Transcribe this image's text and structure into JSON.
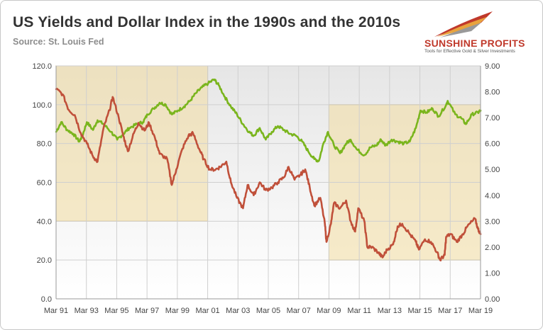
{
  "header": {
    "title": "US Yields and Dollar Index in the 1990s and the 2010s",
    "subtitle": "Source: St. Louis Fed"
  },
  "logo": {
    "name": "SUNSHINE PROFITS",
    "tagline": "Tools for Effective Gold & Silver Investments",
    "colors": [
      "#c0392b",
      "#e8a33d",
      "#999999"
    ]
  },
  "chart_data": {
    "type": "line",
    "title": "US Yields and Dollar Index in the 1990s and the 2010s",
    "subtitle": "Source: St. Louis Fed",
    "xlabel": "",
    "ylabel": "",
    "grid": true,
    "x_ticks": [
      "Mar 91",
      "Mar 93",
      "Mar 95",
      "Mar 97",
      "Mar 99",
      "Mar 01",
      "Mar 03",
      "Mar 05",
      "Mar 07",
      "Mar 09",
      "Mar 11",
      "Mar 13",
      "Mar 15",
      "Mar 17",
      "Mar 19"
    ],
    "x_range": [
      "1991-03",
      "2019-03"
    ],
    "y_left": {
      "ticks": [
        "0.0",
        "20.0",
        "40.0",
        "60.0",
        "80.0",
        "100.0",
        "120.0"
      ],
      "range": [
        0,
        120
      ]
    },
    "y_right": {
      "ticks": [
        "0.00",
        "1.00",
        "2.00",
        "3.00",
        "4.00",
        "5.00",
        "6.00",
        "7.00",
        "8.00",
        "9.00"
      ],
      "range": [
        0,
        9
      ]
    },
    "highlights": [
      {
        "x_start": "1991-03",
        "x_end": "2001-03",
        "y_left": [
          40,
          120
        ]
      },
      {
        "x_start": "2009-03",
        "x_end": "2019-03",
        "y_left": [
          20,
          100
        ]
      }
    ],
    "series": [
      {
        "color": "#7ab51d",
        "axis": "left",
        "points": [
          [
            1991.17,
            86
          ],
          [
            1991.5,
            91
          ],
          [
            1991.9,
            87
          ],
          [
            1992.3,
            85
          ],
          [
            1992.7,
            81
          ],
          [
            1992.9,
            84
          ],
          [
            1993.2,
            91
          ],
          [
            1993.6,
            87
          ],
          [
            1993.9,
            92
          ],
          [
            1994.3,
            90
          ],
          [
            1994.8,
            86
          ],
          [
            1995.2,
            82
          ],
          [
            1995.6,
            85
          ],
          [
            1996.0,
            88
          ],
          [
            1996.5,
            90
          ],
          [
            1996.9,
            91
          ],
          [
            1997.2,
            95
          ],
          [
            1997.6,
            98
          ],
          [
            1998.0,
            101
          ],
          [
            1998.4,
            100
          ],
          [
            1998.8,
            95
          ],
          [
            1999.2,
            97
          ],
          [
            1999.6,
            99
          ],
          [
            2000.0,
            102
          ],
          [
            2000.4,
            106
          ],
          [
            2000.8,
            109
          ],
          [
            2001.2,
            111
          ],
          [
            2001.6,
            113
          ],
          [
            2001.9,
            110
          ],
          [
            2002.3,
            104
          ],
          [
            2002.7,
            99
          ],
          [
            2003.1,
            95
          ],
          [
            2003.5,
            90
          ],
          [
            2003.9,
            86
          ],
          [
            2004.2,
            84
          ],
          [
            2004.6,
            88
          ],
          [
            2005.0,
            82
          ],
          [
            2005.4,
            86
          ],
          [
            2005.8,
            89
          ],
          [
            2006.2,
            87
          ],
          [
            2006.6,
            85
          ],
          [
            2007.0,
            84
          ],
          [
            2007.4,
            81
          ],
          [
            2007.8,
            76
          ],
          [
            2008.2,
            72
          ],
          [
            2008.5,
            71
          ],
          [
            2008.8,
            80
          ],
          [
            2009.1,
            86
          ],
          [
            2009.5,
            79
          ],
          [
            2009.9,
            75
          ],
          [
            2010.3,
            80
          ],
          [
            2010.6,
            82
          ],
          [
            2011.0,
            77
          ],
          [
            2011.5,
            74
          ],
          [
            2011.9,
            78
          ],
          [
            2012.3,
            79
          ],
          [
            2012.6,
            82
          ],
          [
            2012.9,
            79
          ],
          [
            2013.3,
            82
          ],
          [
            2013.7,
            81
          ],
          [
            2014.1,
            80
          ],
          [
            2014.5,
            81
          ],
          [
            2014.9,
            88
          ],
          [
            2015.2,
            97
          ],
          [
            2015.6,
            96
          ],
          [
            2016.0,
            98
          ],
          [
            2016.4,
            94
          ],
          [
            2016.9,
            100
          ],
          [
            2017.0,
            102
          ],
          [
            2017.5,
            95
          ],
          [
            2017.9,
            93
          ],
          [
            2018.2,
            90
          ],
          [
            2018.6,
            95
          ],
          [
            2019.0,
            96
          ],
          [
            2019.17,
            97
          ]
        ]
      },
      {
        "color": "#c0503a",
        "axis": "right",
        "points": [
          [
            1991.17,
            8.1
          ],
          [
            1991.6,
            7.9
          ],
          [
            1992.0,
            7.3
          ],
          [
            1992.4,
            7.1
          ],
          [
            1992.8,
            6.4
          ],
          [
            1993.2,
            6.0
          ],
          [
            1993.6,
            5.5
          ],
          [
            1993.9,
            5.3
          ],
          [
            1994.3,
            6.6
          ],
          [
            1994.7,
            7.3
          ],
          [
            1994.9,
            7.8
          ],
          [
            1995.3,
            7.0
          ],
          [
            1995.6,
            6.3
          ],
          [
            1995.9,
            5.7
          ],
          [
            1996.3,
            6.4
          ],
          [
            1996.6,
            6.8
          ],
          [
            1997.0,
            6.5
          ],
          [
            1997.3,
            6.8
          ],
          [
            1997.7,
            6.2
          ],
          [
            1998.0,
            5.6
          ],
          [
            1998.5,
            5.4
          ],
          [
            1998.8,
            4.4
          ],
          [
            1999.1,
            5.0
          ],
          [
            1999.5,
            5.8
          ],
          [
            1999.9,
            6.3
          ],
          [
            2000.2,
            6.4
          ],
          [
            2000.6,
            5.8
          ],
          [
            2000.9,
            5.4
          ],
          [
            2001.3,
            5.0
          ],
          [
            2001.7,
            5.0
          ],
          [
            2002.0,
            5.1
          ],
          [
            2002.4,
            5.3
          ],
          [
            2002.7,
            4.5
          ],
          [
            2003.1,
            3.9
          ],
          [
            2003.5,
            3.5
          ],
          [
            2003.8,
            4.4
          ],
          [
            2004.2,
            4.0
          ],
          [
            2004.6,
            4.5
          ],
          [
            2005.0,
            4.2
          ],
          [
            2005.4,
            4.3
          ],
          [
            2005.8,
            4.5
          ],
          [
            2006.2,
            4.7
          ],
          [
            2006.5,
            5.1
          ],
          [
            2006.9,
            4.6
          ],
          [
            2007.3,
            4.8
          ],
          [
            2007.6,
            5.0
          ],
          [
            2007.9,
            4.3
          ],
          [
            2008.2,
            3.6
          ],
          [
            2008.6,
            3.9
          ],
          [
            2008.9,
            2.9
          ],
          [
            2009.0,
            2.2
          ],
          [
            2009.3,
            2.9
          ],
          [
            2009.5,
            3.7
          ],
          [
            2009.9,
            3.5
          ],
          [
            2010.3,
            3.8
          ],
          [
            2010.6,
            3.0
          ],
          [
            2010.9,
            2.6
          ],
          [
            2011.1,
            3.5
          ],
          [
            2011.5,
            3.0
          ],
          [
            2011.7,
            2.0
          ],
          [
            2012.0,
            2.0
          ],
          [
            2012.4,
            1.8
          ],
          [
            2012.7,
            1.6
          ],
          [
            2013.0,
            1.9
          ],
          [
            2013.4,
            2.1
          ],
          [
            2013.7,
            2.8
          ],
          [
            2014.0,
            2.9
          ],
          [
            2014.5,
            2.5
          ],
          [
            2014.9,
            2.2
          ],
          [
            2015.1,
            1.9
          ],
          [
            2015.5,
            2.3
          ],
          [
            2015.9,
            2.2
          ],
          [
            2016.3,
            1.8
          ],
          [
            2016.5,
            1.5
          ],
          [
            2016.8,
            1.7
          ],
          [
            2016.9,
            2.4
          ],
          [
            2017.2,
            2.5
          ],
          [
            2017.6,
            2.2
          ],
          [
            2018.0,
            2.5
          ],
          [
            2018.3,
            2.8
          ],
          [
            2018.8,
            3.1
          ],
          [
            2019.0,
            2.7
          ],
          [
            2019.17,
            2.5
          ]
        ]
      }
    ]
  }
}
